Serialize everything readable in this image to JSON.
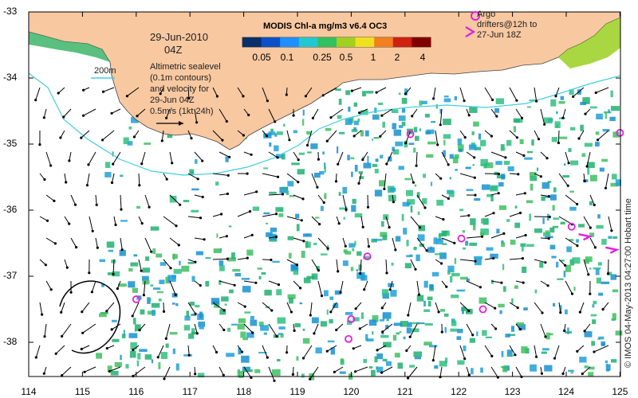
{
  "map": {
    "date": "29-Jun-2010",
    "time": "04Z",
    "product_title": "MODIS Chl-a mg/m3 v6.4 OC3",
    "colorbar": {
      "ticks": [
        "0.05",
        "0.1",
        "0.25",
        "0.5",
        "1",
        "2",
        "4"
      ],
      "colors": [
        "#08306b",
        "#0a50c8",
        "#1e90ff",
        "#20c8d0",
        "#30c060",
        "#a0d020",
        "#f0e020",
        "#f08020",
        "#d02010",
        "#800000"
      ]
    },
    "contour_label": "200m",
    "legend_lines": [
      "Altimetric sealevel",
      "(0.1m contours)",
      "and velocity for",
      "29-Jun 04Z",
      "0.5m/s (1kt 24h)"
    ],
    "argo_legend": [
      "Argo",
      "drifters@12h to",
      "27-Jun 18Z"
    ],
    "credit": "© IMOS 04-May-2013 04:27:00 Hobart time",
    "y_ticks": [
      "-33",
      "-34",
      "-35",
      "-36",
      "-37",
      "-38"
    ],
    "x_ticks": [
      "114",
      "115",
      "116",
      "117",
      "118",
      "119",
      "120",
      "121",
      "122",
      "123",
      "124",
      "125"
    ],
    "colors": {
      "land": "#f8c8a0",
      "coast_chl": "#9ad020",
      "chl_mid": "#20b070",
      "chl_low": "#20a0d8",
      "contour": "#40d0e0",
      "argo": "#e020e0",
      "arrow": "#000000"
    },
    "argo_floats": [
      {
        "lon": 121.1,
        "lat": -34.85
      },
      {
        "lon": 125.0,
        "lat": -34.83
      },
      {
        "lon": 122.05,
        "lat": -36.43
      },
      {
        "lon": 124.1,
        "lat": -36.25
      },
      {
        "lon": 120.3,
        "lat": -36.7
      },
      {
        "lon": 116.0,
        "lat": -37.35
      },
      {
        "lon": 122.45,
        "lat": -37.5
      },
      {
        "lon": 120.0,
        "lat": -37.65
      },
      {
        "lon": 119.95,
        "lat": -37.95
      }
    ],
    "drifter_tracks": [
      {
        "lon": 124.35,
        "lat": -36.4
      },
      {
        "lon": 124.85,
        "lat": -36.6
      }
    ]
  }
}
